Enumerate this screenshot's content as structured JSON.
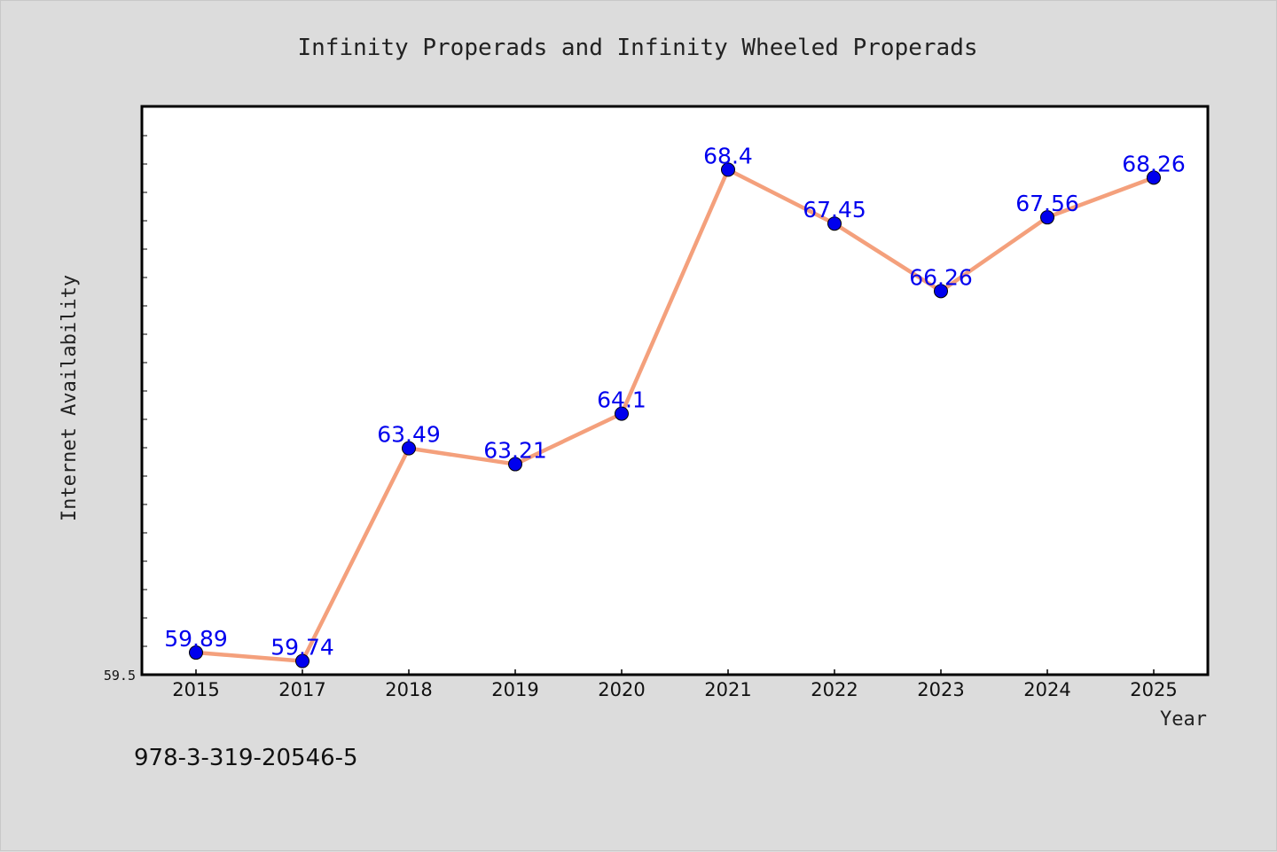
{
  "chart_data": {
    "type": "line",
    "title": "Infinity Properads and Infinity Wheeled Properads",
    "xlabel": "Year",
    "ylabel": "Internet Availability",
    "categories": [
      "2015",
      "2017",
      "2018",
      "2019",
      "2020",
      "2021",
      "2022",
      "2023",
      "2024",
      "2025"
    ],
    "series": [
      {
        "values": [
          59.89,
          59.74,
          63.49,
          63.21,
          64.1,
          68.4,
          67.45,
          66.26,
          67.56,
          68.26
        ],
        "labels": [
          "59.89",
          "59.74",
          "63.49",
          "63.21",
          "64.1",
          "68.4",
          "67.45",
          "66.26",
          "67.56",
          "68.26"
        ]
      }
    ],
    "yticks": [
      "59.5"
    ],
    "ylim": [
      59.5,
      69.5
    ],
    "grid": false,
    "legend": "none",
    "colors": {
      "line": "#f4a07c",
      "marker": "#0000ee",
      "data_label": "#0000ee",
      "background": "#dcdcdc",
      "plot_bg": "#ffffff"
    }
  },
  "footer": {
    "isbn": "978-3-319-20546-5"
  }
}
